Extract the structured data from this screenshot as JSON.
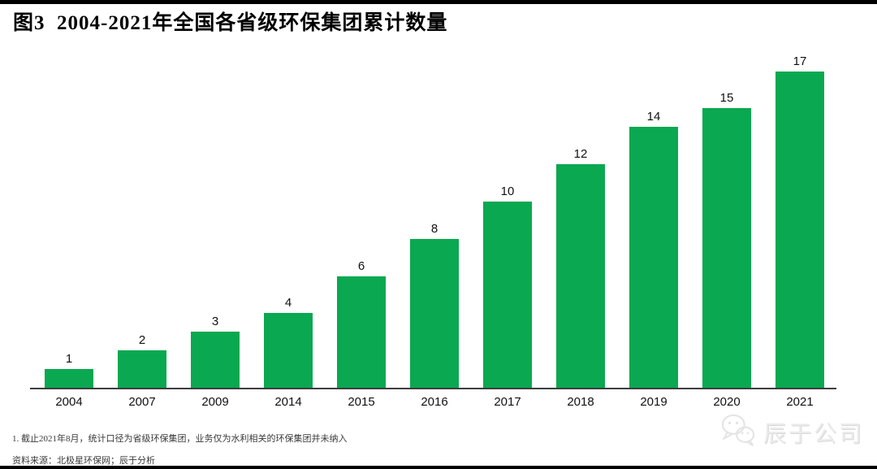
{
  "page": {
    "title": "图3  2004-2021年全国各省级环保集团累计数量"
  },
  "chart_data": {
    "type": "bar",
    "title": "图3 2004-2021年全国各省级环保集团累计数量",
    "categories": [
      "2004",
      "2007",
      "2009",
      "2014",
      "2015",
      "2016",
      "2017",
      "2018",
      "2019",
      "2020",
      "2021"
    ],
    "values": [
      1,
      2,
      3,
      4,
      6,
      8,
      10,
      12,
      14,
      15,
      17
    ],
    "xlabel": "",
    "ylabel": "",
    "ylim": [
      0,
      17
    ],
    "grid": false,
    "legend_position": "none",
    "value_labels_shown": true,
    "bar_color": "#0aa850",
    "axis_color": "#3d3d3d"
  },
  "footnotes": {
    "note1": "1. 截止2021年8月，统计口径为省级环保集团，业务仅为水利相关的环保集团并未纳入",
    "source": "资料来源：北极星环保网；辰于分析"
  },
  "watermark": {
    "icon": "wechat-icon",
    "text": "辰于公司"
  }
}
